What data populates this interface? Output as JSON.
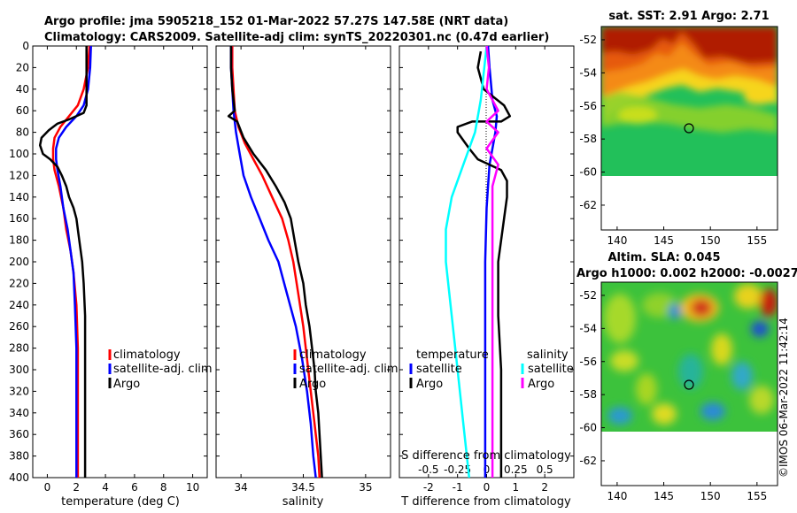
{
  "title_line1": "Argo profile: jma 5905218_152 01-Mar-2022 57.27S 147.58E (NRT data)",
  "title_line2": "Climatology: CARS2009. Satellite-adj clim: synTS_20220301.nc (0.47d earlier)",
  "copyright": "©IMOS 06-Mar-2022 11:42:14",
  "colors": {
    "climatology": "#ff0000",
    "satellite": "#0000ff",
    "argo": "#000000",
    "sat_salinity": "#00ffff",
    "argo_salinity": "#ff00ff"
  },
  "chart_data": [
    {
      "id": "temperature",
      "type": "line",
      "xlabel": "temperature (deg C)",
      "ylabel": "",
      "xlim": [
        -1,
        11
      ],
      "ylim": [
        400,
        0
      ],
      "xticks": [
        "0",
        "2",
        "4",
        "6",
        "8",
        "10"
      ],
      "yticks": [
        "0",
        "20",
        "40",
        "60",
        "80",
        "100",
        "120",
        "140",
        "160",
        "180",
        "200",
        "220",
        "240",
        "260",
        "280",
        "300",
        "320",
        "340",
        "360",
        "380",
        "400"
      ],
      "legend": [
        "climatology",
        "satellite-adj. clim",
        "Argo"
      ],
      "series": [
        {
          "name": "climatology",
          "color": "#ff0000",
          "points": [
            [
              2.9,
              0
            ],
            [
              2.8,
              20
            ],
            [
              2.5,
              40
            ],
            [
              2.1,
              55
            ],
            [
              1.5,
              65
            ],
            [
              0.9,
              75
            ],
            [
              0.5,
              85
            ],
            [
              0.4,
              95
            ],
            [
              0.4,
              105
            ],
            [
              0.5,
              115
            ],
            [
              0.8,
              130
            ],
            [
              1.1,
              150
            ],
            [
              1.3,
              170
            ],
            [
              1.6,
              190
            ],
            [
              1.8,
              210
            ],
            [
              2.0,
              240
            ],
            [
              2.1,
              280
            ],
            [
              2.1,
              330
            ],
            [
              2.1,
              380
            ],
            [
              2.1,
              400
            ]
          ]
        },
        {
          "name": "satellite-adj. clim",
          "color": "#0000ff",
          "points": [
            [
              3.0,
              0
            ],
            [
              2.95,
              20
            ],
            [
              2.8,
              40
            ],
            [
              2.5,
              55
            ],
            [
              2.0,
              65
            ],
            [
              1.3,
              75
            ],
            [
              0.8,
              85
            ],
            [
              0.6,
              95
            ],
            [
              0.6,
              105
            ],
            [
              0.7,
              115
            ],
            [
              0.9,
              130
            ],
            [
              1.1,
              150
            ],
            [
              1.4,
              170
            ],
            [
              1.6,
              190
            ],
            [
              1.8,
              210
            ],
            [
              1.9,
              240
            ],
            [
              2.0,
              280
            ],
            [
              2.0,
              330
            ],
            [
              2.0,
              380
            ],
            [
              2.0,
              400
            ]
          ]
        },
        {
          "name": "Argo",
          "color": "#000000",
          "points": [
            [
              2.7,
              0
            ],
            [
              2.7,
              20
            ],
            [
              2.7,
              40
            ],
            [
              2.7,
              55
            ],
            [
              2.5,
              62
            ],
            [
              1.5,
              68
            ],
            [
              0.7,
              72
            ],
            [
              0.1,
              78
            ],
            [
              -0.4,
              85
            ],
            [
              -0.5,
              92
            ],
            [
              -0.3,
              100
            ],
            [
              0.2,
              105
            ],
            [
              0.7,
              112
            ],
            [
              1.0,
              120
            ],
            [
              1.3,
              130
            ],
            [
              1.5,
              140
            ],
            [
              1.8,
              150
            ],
            [
              2.0,
              160
            ],
            [
              2.2,
              180
            ],
            [
              2.4,
              200
            ],
            [
              2.5,
              220
            ],
            [
              2.6,
              250
            ],
            [
              2.6,
              300
            ],
            [
              2.6,
              350
            ],
            [
              2.6,
              400
            ]
          ]
        }
      ]
    },
    {
      "id": "salinity",
      "type": "line",
      "xlabel": "salinity",
      "ylabel": "",
      "xlim": [
        33.8,
        35.2
      ],
      "ylim": [
        400,
        0
      ],
      "xticks": [
        "34",
        "34.5",
        "35"
      ],
      "legend": [
        "climatology",
        "satellite-adj. clim",
        "Argo"
      ],
      "series": [
        {
          "name": "climatology",
          "color": "#ff0000",
          "points": [
            [
              33.93,
              0
            ],
            [
              33.93,
              20
            ],
            [
              33.94,
              40
            ],
            [
              33.95,
              60
            ],
            [
              33.98,
              75
            ],
            [
              34.03,
              90
            ],
            [
              34.1,
              105
            ],
            [
              34.17,
              120
            ],
            [
              34.25,
              140
            ],
            [
              34.33,
              160
            ],
            [
              34.38,
              180
            ],
            [
              34.42,
              200
            ],
            [
              34.46,
              230
            ],
            [
              34.5,
              260
            ],
            [
              34.53,
              290
            ],
            [
              34.56,
              320
            ],
            [
              34.59,
              350
            ],
            [
              34.62,
              380
            ],
            [
              34.63,
              400
            ]
          ]
        },
        {
          "name": "satellite-adj. clim",
          "color": "#0000ff",
          "points": [
            [
              33.92,
              0
            ],
            [
              33.92,
              20
            ],
            [
              33.93,
              40
            ],
            [
              33.94,
              60
            ],
            [
              33.96,
              80
            ],
            [
              33.99,
              100
            ],
            [
              34.02,
              120
            ],
            [
              34.08,
              140
            ],
            [
              34.15,
              160
            ],
            [
              34.22,
              180
            ],
            [
              34.3,
              200
            ],
            [
              34.37,
              230
            ],
            [
              34.44,
              260
            ],
            [
              34.49,
              290
            ],
            [
              34.53,
              320
            ],
            [
              34.56,
              350
            ],
            [
              34.58,
              380
            ],
            [
              34.6,
              400
            ]
          ]
        },
        {
          "name": "Argo",
          "color": "#000000",
          "points": [
            [
              33.92,
              0
            ],
            [
              33.92,
              20
            ],
            [
              33.93,
              40
            ],
            [
              33.95,
              60
            ],
            [
              33.9,
              65
            ],
            [
              33.97,
              70
            ],
            [
              34.02,
              85
            ],
            [
              34.1,
              100
            ],
            [
              34.2,
              115
            ],
            [
              34.28,
              130
            ],
            [
              34.35,
              145
            ],
            [
              34.4,
              160
            ],
            [
              34.43,
              180
            ],
            [
              34.46,
              200
            ],
            [
              34.5,
              220
            ],
            [
              34.52,
              240
            ],
            [
              34.55,
              260
            ],
            [
              34.57,
              280
            ],
            [
              34.59,
              300
            ],
            [
              34.6,
              320
            ],
            [
              34.62,
              340
            ],
            [
              34.63,
              360
            ],
            [
              34.64,
              380
            ],
            [
              34.65,
              400
            ]
          ]
        }
      ]
    },
    {
      "id": "difference",
      "type": "line",
      "xlabel": "T difference from climatology",
      "xlabel_top": "S difference from climatology",
      "xlim": [
        -3,
        3
      ],
      "ylim": [
        400,
        0
      ],
      "xticks": [
        "-2",
        "-1",
        "0",
        "1",
        "2"
      ],
      "xticks_top": [
        "-0.5",
        "-0.25",
        "0",
        "0.25",
        "0.5"
      ],
      "legend_t_title": "temperature",
      "legend_s_title": "salinity",
      "legend_t": [
        "satellite",
        "Argo"
      ],
      "legend_s": [
        "satellite",
        "Argo"
      ],
      "series": [
        {
          "name": "satellite T",
          "color": "#0000ff",
          "points": [
            [
              0.05,
              0
            ],
            [
              0.1,
              20
            ],
            [
              0.2,
              50
            ],
            [
              0.35,
              65
            ],
            [
              0.3,
              80
            ],
            [
              0.2,
              95
            ],
            [
              0.1,
              110
            ],
            [
              0.05,
              130
            ],
            [
              0.0,
              150
            ],
            [
              -0.05,
              200
            ],
            [
              -0.05,
              300
            ],
            [
              -0.05,
              400
            ]
          ]
        },
        {
          "name": "Argo T",
          "color": "#000000",
          "points": [
            [
              -0.2,
              5
            ],
            [
              -0.3,
              20
            ],
            [
              -0.1,
              40
            ],
            [
              0.6,
              55
            ],
            [
              0.8,
              65
            ],
            [
              0.5,
              70
            ],
            [
              -0.5,
              70
            ],
            [
              -1.0,
              75
            ],
            [
              -1.0,
              80
            ],
            [
              -0.6,
              95
            ],
            [
              -0.3,
              105
            ],
            [
              0.1,
              110
            ],
            [
              0.5,
              115
            ],
            [
              0.7,
              125
            ],
            [
              0.7,
              140
            ],
            [
              0.6,
              160
            ],
            [
              0.5,
              180
            ],
            [
              0.4,
              200
            ],
            [
              0.4,
              220
            ],
            [
              0.4,
              250
            ],
            [
              0.5,
              300
            ],
            [
              0.5,
              350
            ],
            [
              0.5,
              400
            ]
          ]
        },
        {
          "name": "satellite S",
          "color": "#00ffff",
          "points": [
            [
              0.0,
              0
            ],
            [
              -0.02,
              20
            ],
            [
              -0.05,
              50
            ],
            [
              -0.1,
              80
            ],
            [
              -0.2,
              110
            ],
            [
              -0.3,
              140
            ],
            [
              -0.35,
              170
            ],
            [
              -0.35,
              200
            ],
            [
              -0.3,
              250
            ],
            [
              -0.25,
              300
            ],
            [
              -0.2,
              350
            ],
            [
              -0.15,
              400
            ]
          ]
        },
        {
          "name": "Argo S",
          "color": "#ff00ff",
          "points": [
            [
              0.0,
              0
            ],
            [
              0.02,
              20
            ],
            [
              0.0,
              40
            ],
            [
              0.1,
              60
            ],
            [
              0.0,
              70
            ],
            [
              0.1,
              80
            ],
            [
              0.0,
              95
            ],
            [
              0.1,
              110
            ],
            [
              0.05,
              130
            ],
            [
              0.05,
              160
            ],
            [
              0.05,
              200
            ],
            [
              0.05,
              250
            ],
            [
              0.05,
              300
            ],
            [
              0.05,
              350
            ],
            [
              0.05,
              400
            ]
          ]
        }
      ]
    }
  ],
  "maps": {
    "sst": {
      "title": "sat. SST: 2.91 Argo: 2.71",
      "xticks": [
        "140",
        "145",
        "150",
        "155"
      ],
      "yticks": [
        "-52",
        "-54",
        "-56",
        "-58",
        "-60",
        "-62"
      ],
      "argo_position": [
        147.58,
        -57.27
      ]
    },
    "sla": {
      "title_line1": "Altim. SLA: 0.045",
      "title_line2": "Argo h1000: 0.002 h2000: -0.0027",
      "xticks": [
        "140",
        "145",
        "150",
        "155"
      ],
      "yticks": [
        "-52",
        "-54",
        "-56",
        "-58",
        "-60",
        "-62"
      ],
      "argo_position": [
        147.58,
        -57.27
      ]
    }
  }
}
